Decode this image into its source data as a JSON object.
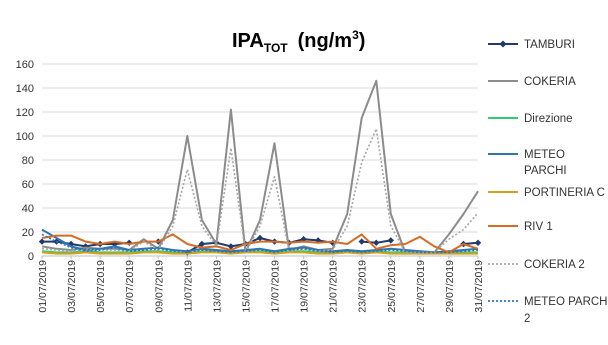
{
  "chart_data": {
    "type": "line",
    "title": "IPA",
    "title_subscript": "TOT",
    "title_unit": "(ng/m",
    "title_unit_sup": "3",
    "title_unit_close": ")",
    "xlabel": "",
    "ylabel": "",
    "ylim": [
      0,
      160
    ],
    "yticks": [
      0,
      20,
      40,
      60,
      80,
      100,
      120,
      140,
      160
    ],
    "grid": true,
    "legend_position": "right",
    "x": [
      "01/07/2019",
      "02/07/2019",
      "03/07/2019",
      "04/07/2019",
      "05/07/2019",
      "06/07/2019",
      "07/07/2019",
      "08/07/2019",
      "09/07/2019",
      "10/07/2019",
      "11/07/2019",
      "12/07/2019",
      "13/07/2019",
      "14/07/2019",
      "15/07/2019",
      "16/07/2019",
      "17/07/2019",
      "18/07/2019",
      "19/07/2019",
      "20/07/2019",
      "21/07/2019",
      "22/07/2019",
      "23/07/2019",
      "24/07/2019",
      "25/07/2019",
      "26/07/2019",
      "27/07/2019",
      "28/07/2019",
      "29/07/2019",
      "30/07/2019",
      "31/07/2019"
    ],
    "x_tick_labels": [
      "01/07/2019",
      "03/07/2019",
      "05/07/2019",
      "07/07/2019",
      "09/07/2019",
      "11/07/2019",
      "13/07/2019",
      "15/07/2019",
      "17/07/2019",
      "19/07/2019",
      "21/07/2019",
      "23/07/2019",
      "25/07/2019",
      "27/07/2019",
      "29/07/2019",
      "31/07/2019"
    ],
    "series": [
      {
        "name": "TAMBURI",
        "color": "#1f3a6b",
        "dash": "solid",
        "marker": "diamond",
        "values": [
          12,
          12,
          10,
          8,
          10,
          10,
          11,
          null,
          12,
          null,
          3,
          10,
          11,
          8,
          10,
          15,
          12,
          11,
          14,
          13,
          11,
          null,
          12,
          11,
          13,
          null,
          null,
          null,
          null,
          10,
          11
        ]
      },
      {
        "name": "COKERIA",
        "color": "#8c8c8c",
        "dash": "solid",
        "marker": "none",
        "values": [
          8,
          6,
          5,
          7,
          6,
          6,
          5,
          14,
          6,
          30,
          100,
          30,
          10,
          122,
          3,
          30,
          94,
          5,
          8,
          5,
          6,
          35,
          115,
          146,
          35,
          3,
          4,
          3,
          18,
          35,
          54
        ]
      },
      {
        "name": "Direzione",
        "color": "#2ecc71",
        "dash": "solid",
        "marker": "none",
        "values": [
          4,
          3,
          3,
          4,
          3,
          3,
          3,
          4,
          4,
          3,
          2,
          4,
          4,
          3,
          4,
          4,
          3,
          4,
          4,
          3,
          3,
          4,
          3,
          4,
          3,
          3,
          3,
          3,
          3,
          3,
          3
        ]
      },
      {
        "name": "METEO PARCHI",
        "color": "#2e75b6",
        "dash": "solid",
        "marker": "none",
        "values": [
          22,
          15,
          8,
          5,
          6,
          8,
          5,
          6,
          7,
          5,
          4,
          6,
          5,
          4,
          5,
          6,
          4,
          6,
          7,
          5,
          4,
          5,
          4,
          5,
          6,
          5,
          4,
          3,
          4,
          5,
          6
        ]
      },
      {
        "name": "PORTINERIA C",
        "color": "#d4a017",
        "dash": "solid",
        "marker": "none",
        "values": [
          3,
          2,
          2,
          3,
          2,
          2,
          2,
          3,
          3,
          2,
          2,
          3,
          3,
          2,
          3,
          3,
          2,
          3,
          3,
          2,
          2,
          3,
          2,
          3,
          2,
          2,
          2,
          2,
          2,
          2,
          2
        ]
      },
      {
        "name": "RIV 1",
        "color": "#d86b22",
        "dash": "solid",
        "marker": "none",
        "values": [
          15,
          17,
          17,
          12,
          10,
          12,
          10,
          12,
          12,
          18,
          10,
          7,
          8,
          5,
          10,
          12,
          12,
          11,
          12,
          11,
          12,
          10,
          18,
          6,
          9,
          10,
          16,
          8,
          3,
          10,
          6
        ]
      },
      {
        "name": "COKERIA 2",
        "color": "#a6a6a6",
        "dash": "dotted",
        "marker": "none",
        "values": [
          6,
          5,
          4,
          5,
          5,
          5,
          4,
          12,
          5,
          25,
          72,
          25,
          8,
          90,
          3,
          25,
          66,
          4,
          6,
          4,
          5,
          25,
          78,
          106,
          25,
          3,
          3,
          3,
          14,
          22,
          36
        ]
      },
      {
        "name": "METEO PARCHI 2",
        "color": "#2e75b6",
        "dash": "dotted",
        "marker": "none",
        "values": [
          18,
          12,
          7,
          4,
          5,
          7,
          4,
          5,
          6,
          4,
          3,
          5,
          4,
          3,
          4,
          5,
          3,
          5,
          6,
          4,
          3,
          4,
          3,
          4,
          5,
          4,
          3,
          3,
          3,
          4,
          5
        ]
      }
    ]
  }
}
